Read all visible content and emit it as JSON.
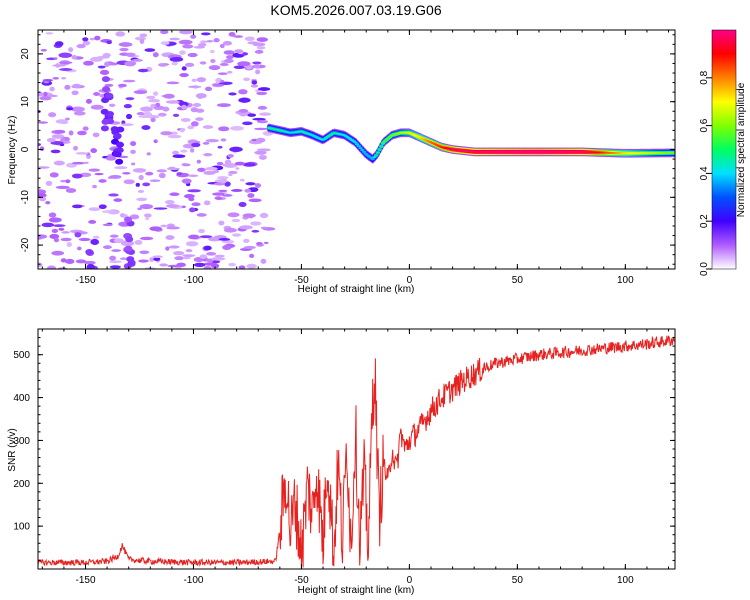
{
  "title": "KOM5.2026.007.03.19.G06",
  "colors": {
    "snr_line": "#e8211e",
    "axis": "#000000",
    "background": "#ffffff"
  },
  "chart_data": [
    {
      "type": "heatmap",
      "name": "spectrogram",
      "xlabel": "Height of straight line (km)",
      "ylabel": "Frequency (Hz)",
      "xlim": [
        -172,
        123
      ],
      "ylim": [
        -25,
        25
      ],
      "xticks": [
        -150,
        -100,
        -50,
        0,
        50,
        100
      ],
      "yticks": [
        -20,
        -10,
        0,
        10,
        20
      ],
      "colorbar": {
        "label": "Normalized spectral amplitude",
        "range": [
          0,
          1
        ],
        "ticks": [
          0.0,
          0.2,
          0.4,
          0.6,
          0.8
        ],
        "stops": [
          "#ffffff",
          "#b05cff",
          "#4000ff",
          "#0050ff",
          "#00e0ff",
          "#00ff60",
          "#80ff00",
          "#ffff00",
          "#ff8000",
          "#ff0000",
          "#ff0088"
        ]
      },
      "ridge": {
        "x": [
          -65,
          -60,
          -55,
          -50,
          -45,
          -40,
          -35,
          -30,
          -25,
          -20,
          -17,
          -15,
          -12,
          -8,
          -4,
          0,
          5,
          10,
          15,
          20,
          30,
          40,
          60,
          80,
          100,
          123
        ],
        "frequency": [
          4.5,
          4.0,
          3.5,
          3.8,
          3.0,
          2.0,
          3.5,
          3.0,
          1.5,
          -1.0,
          -2.0,
          -1.0,
          1.5,
          3.0,
          3.5,
          3.5,
          2.5,
          1.5,
          0.5,
          0.0,
          -0.5,
          -0.5,
          -0.5,
          -0.5,
          -0.8,
          -0.7
        ],
        "amplitude": [
          0.35,
          0.35,
          0.3,
          0.35,
          0.3,
          0.3,
          0.35,
          0.3,
          0.28,
          0.25,
          0.25,
          0.35,
          0.4,
          0.45,
          0.5,
          0.55,
          0.6,
          0.7,
          0.75,
          0.85,
          0.9,
          0.92,
          0.95,
          0.9,
          0.6,
          0.45
        ]
      },
      "noise_region_x": [
        -172,
        -65
      ]
    },
    {
      "type": "line",
      "name": "snr",
      "xlabel": "Height of straight line (km)",
      "ylabel": "SNR (v/v)",
      "xlim": [
        -172,
        123
      ],
      "ylim": [
        0,
        560
      ],
      "xticks": [
        -150,
        -100,
        -50,
        0,
        50,
        100
      ],
      "yticks": [
        100,
        200,
        300,
        400,
        500
      ],
      "series": [
        {
          "name": "SNR",
          "x": [
            -172,
            -150,
            -140,
            -135,
            -133,
            -130,
            -120,
            -100,
            -80,
            -62,
            -60,
            -58,
            -57,
            -55,
            -53,
            -50,
            -47,
            -45,
            -43,
            -40,
            -38,
            -35,
            -33,
            -31,
            -29,
            -27,
            -25,
            -23,
            -21,
            -19,
            -17,
            -16,
            -14,
            -12,
            -10,
            -8,
            -6,
            -4,
            -2,
            0,
            5,
            10,
            15,
            20,
            25,
            30,
            35,
            40,
            50,
            60,
            70,
            80,
            90,
            100,
            110,
            123
          ],
          "y": [
            15,
            15,
            18,
            30,
            55,
            22,
            18,
            15,
            15,
            18,
            90,
            180,
            215,
            80,
            160,
            40,
            200,
            120,
            230,
            60,
            260,
            40,
            250,
            60,
            300,
            50,
            330,
            70,
            220,
            60,
            400,
            460,
            120,
            250,
            200,
            280,
            230,
            320,
            280,
            300,
            330,
            370,
            400,
            420,
            440,
            455,
            470,
            480,
            490,
            500,
            505,
            510,
            515,
            520,
            525,
            535
          ]
        }
      ]
    }
  ]
}
